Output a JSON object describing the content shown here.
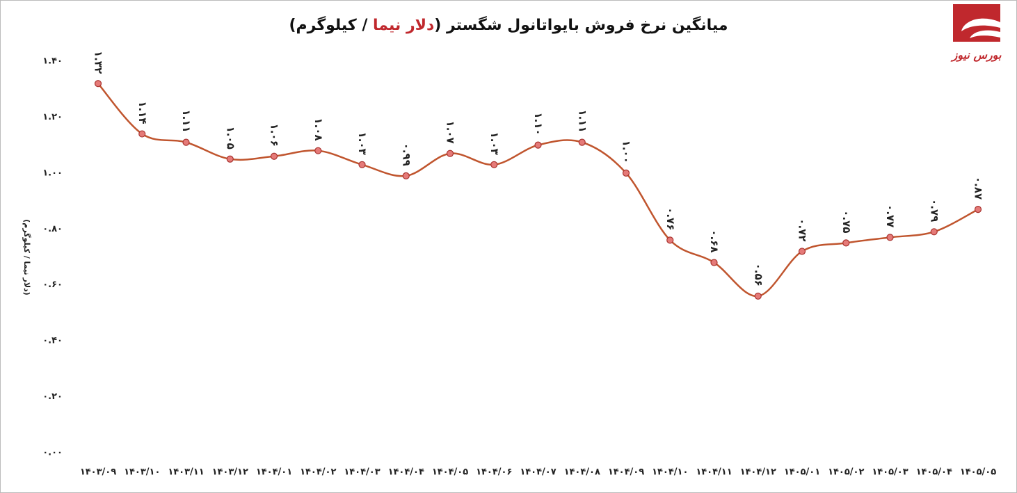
{
  "chart_data": {
    "type": "line",
    "title": [
      "میانگین نرخ فروش بایواتانول شگستر (",
      "دلار نیما",
      " / کیلوگرم)"
    ],
    "ylabel": "(دلار نیما / کیلوگرم)",
    "logo_text": "بورس نیوز",
    "categories": [
      "۱۴۰۳/۰۹",
      "۱۴۰۳/۱۰",
      "۱۴۰۳/۱۱",
      "۱۴۰۳/۱۲",
      "۱۴۰۴/۰۱",
      "۱۴۰۴/۰۲",
      "۱۴۰۴/۰۳",
      "۱۴۰۴/۰۴",
      "۱۴۰۴/۰۵",
      "۱۴۰۴/۰۶",
      "۱۴۰۴/۰۷",
      "۱۴۰۴/۰۸",
      "۱۴۰۴/۰۹",
      "۱۴۰۴/۱۰",
      "۱۴۰۴/۱۱",
      "۱۴۰۴/۱۲",
      "۱۴۰۵/۰۱",
      "۱۴۰۵/۰۲",
      "۱۴۰۵/۰۳",
      "۱۴۰۵/۰۴",
      "۱۴۰۵/۰۵"
    ],
    "values": [
      1.32,
      1.14,
      1.11,
      1.05,
      1.06,
      1.08,
      1.03,
      0.99,
      1.07,
      1.03,
      1.1,
      1.11,
      1.0,
      0.76,
      0.68,
      0.56,
      0.72,
      0.75,
      0.77,
      0.79,
      0.87
    ],
    "value_labels": [
      "۱.۳۲",
      "۱.۱۴",
      "۱.۱۱",
      "۱.۰۵",
      "۱.۰۶",
      "۱.۰۸",
      "۱.۰۳",
      "۰.۹۹",
      "۱.۰۷",
      "۱.۰۳",
      "۱.۱۰",
      "۱.۱۱",
      "۱.۰۰",
      "۰.۷۶",
      "۰.۶۸",
      "۰.۵۶",
      "۰.۷۲",
      "۰.۷۵",
      "۰.۷۷",
      "۰.۷۹",
      "۰.۸۷"
    ],
    "color": "#c0552e",
    "marker_color": "#e57a78",
    "ylim": [
      0,
      1.4
    ],
    "yticks": [
      {
        "value": 0,
        "label": "۰.۰۰"
      },
      {
        "value": 0.2,
        "label": "۰.۲۰"
      },
      {
        "value": 0.4,
        "label": "۰.۴۰"
      },
      {
        "value": 0.6,
        "label": "۰.۶۰"
      },
      {
        "value": 0.8,
        "label": "۰.۸۰"
      },
      {
        "value": 1.0,
        "label": "۱.۰۰"
      },
      {
        "value": 1.2,
        "label": "۱.۲۰"
      },
      {
        "value": 1.4,
        "label": "۱.۴۰"
      }
    ],
    "grid": false
  }
}
